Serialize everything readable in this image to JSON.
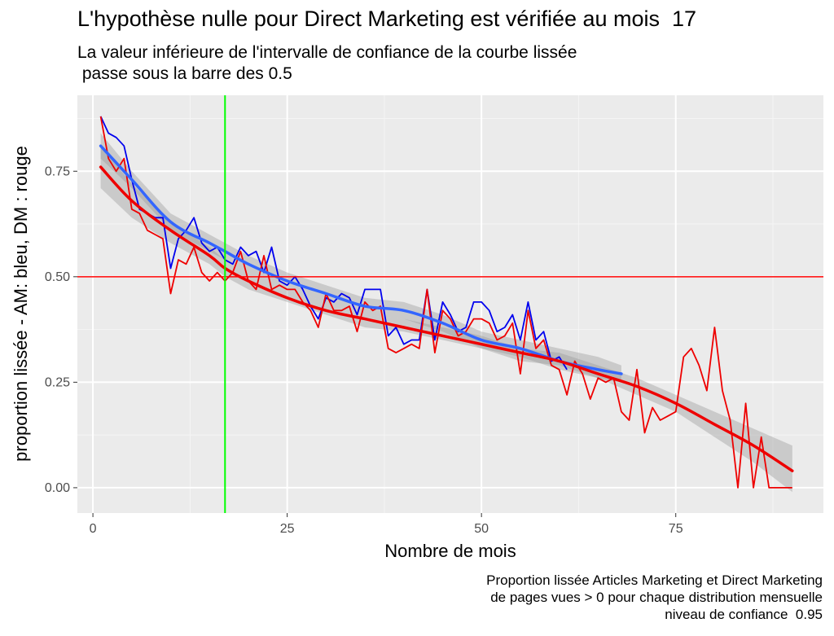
{
  "chart_data": {
    "type": "line",
    "title": "L'hypothèse nulle pour Direct Marketing est vérifiée au mois  17",
    "subtitle": [
      "La valeur inférieure de l'intervalle de confiance de la courbe lissée",
      " passe sous la barre des 0.5"
    ],
    "caption": [
      "Proportion lissée Articles Marketing et Direct Marketing",
      "de pages vues > 0 pour chaque distribution mensuelle",
      "niveau de confiance  0.95"
    ],
    "xlabel": "Nombre de mois",
    "ylabel": "proportion lissée - AM: bleu, DM : rouge",
    "xlim": [
      -2,
      94
    ],
    "ylim": [
      -0.06,
      0.93
    ],
    "x_ticks": [
      0,
      25,
      50,
      75
    ],
    "x_tick_labels": [
      "0",
      "25",
      "50",
      "75"
    ],
    "y_ticks": [
      0,
      0.25,
      0.5,
      0.75
    ],
    "y_tick_labels": [
      "0.00",
      "0.25",
      "0.50",
      "0.75"
    ],
    "grid": true,
    "hline": {
      "y": 0.5,
      "color": "#ff0000"
    },
    "vline": {
      "x": 17,
      "color": "#00ff00"
    },
    "series": [
      {
        "color": "#0000ee",
        "x": [
          1,
          2,
          3,
          4,
          5,
          6,
          7,
          8,
          9,
          10,
          11,
          12,
          13,
          14,
          15,
          16,
          17,
          18,
          19,
          20,
          21,
          22,
          23,
          24,
          25,
          26,
          27,
          28,
          29,
          30,
          31,
          32,
          33,
          34,
          35,
          36,
          37,
          38,
          39,
          40,
          41,
          42,
          43,
          44,
          45,
          46,
          47,
          48,
          49,
          50,
          51,
          52,
          53,
          54,
          55,
          56,
          57,
          58,
          59,
          60,
          61
        ],
        "values": [
          0.88,
          0.84,
          0.83,
          0.81,
          0.73,
          0.66,
          0.65,
          0.64,
          0.64,
          0.52,
          0.59,
          0.61,
          0.64,
          0.58,
          0.56,
          0.57,
          0.54,
          0.53,
          0.57,
          0.55,
          0.56,
          0.51,
          0.57,
          0.49,
          0.48,
          0.5,
          0.47,
          0.43,
          0.4,
          0.45,
          0.44,
          0.46,
          0.45,
          0.41,
          0.47,
          0.47,
          0.47,
          0.36,
          0.38,
          0.34,
          0.35,
          0.35,
          0.47,
          0.35,
          0.44,
          0.41,
          0.37,
          0.38,
          0.44,
          0.44,
          0.42,
          0.37,
          0.38,
          0.41,
          0.35,
          0.44,
          0.35,
          0.37,
          0.3,
          0.31,
          0.28
        ]
      },
      {
        "color": "#ee0000",
        "x": [
          1,
          2,
          3,
          4,
          5,
          6,
          7,
          8,
          9,
          10,
          11,
          12,
          13,
          14,
          15,
          16,
          17,
          18,
          19,
          20,
          21,
          22,
          23,
          24,
          25,
          26,
          27,
          28,
          29,
          30,
          31,
          32,
          33,
          34,
          35,
          36,
          37,
          38,
          39,
          40,
          41,
          42,
          43,
          44,
          45,
          46,
          47,
          48,
          49,
          50,
          51,
          52,
          53,
          54,
          55,
          56,
          57,
          58,
          59,
          60,
          61,
          62,
          63,
          64,
          65,
          66,
          67,
          68,
          69,
          70,
          71,
          72,
          73,
          74,
          75,
          76,
          77,
          78,
          79,
          80,
          81,
          82,
          83,
          84,
          85,
          86,
          87,
          88,
          89,
          90
        ],
        "values": [
          0.88,
          0.78,
          0.75,
          0.78,
          0.66,
          0.65,
          0.61,
          0.6,
          0.59,
          0.46,
          0.54,
          0.53,
          0.57,
          0.51,
          0.49,
          0.51,
          0.49,
          0.51,
          0.56,
          0.49,
          0.47,
          0.55,
          0.47,
          0.48,
          0.47,
          0.47,
          0.44,
          0.42,
          0.38,
          0.46,
          0.42,
          0.42,
          0.43,
          0.37,
          0.44,
          0.42,
          0.43,
          0.33,
          0.32,
          0.33,
          0.34,
          0.33,
          0.47,
          0.32,
          0.42,
          0.4,
          0.36,
          0.37,
          0.4,
          0.4,
          0.39,
          0.35,
          0.36,
          0.39,
          0.27,
          0.42,
          0.33,
          0.35,
          0.29,
          0.28,
          0.22,
          0.3,
          0.27,
          0.21,
          0.26,
          0.25,
          0.26,
          0.18,
          0.16,
          0.28,
          0.13,
          0.19,
          0.16,
          0.17,
          0.18,
          0.31,
          0.33,
          0.29,
          0.23,
          0.38,
          0.23,
          0.16,
          0.0,
          0.2,
          0.0,
          0.12,
          0.0,
          0.0,
          0.0,
          0.0
        ]
      },
      {
        "color": "#3366ff",
        "smooth": true,
        "x": [
          1,
          5,
          10,
          15,
          17,
          20,
          25,
          30,
          35,
          40,
          45,
          50,
          55,
          60,
          65,
          68
        ],
        "values": [
          0.81,
          0.73,
          0.63,
          0.58,
          0.56,
          0.53,
          0.49,
          0.46,
          0.43,
          0.42,
          0.39,
          0.35,
          0.33,
          0.3,
          0.28,
          0.27
        ],
        "ci_upper": [
          0.84,
          0.75,
          0.65,
          0.6,
          0.58,
          0.55,
          0.51,
          0.48,
          0.45,
          0.44,
          0.41,
          0.37,
          0.35,
          0.33,
          0.31,
          0.29
        ],
        "ci_lower": [
          0.78,
          0.71,
          0.61,
          0.56,
          0.54,
          0.51,
          0.47,
          0.44,
          0.41,
          0.4,
          0.37,
          0.33,
          0.31,
          0.28,
          0.26,
          0.25
        ]
      },
      {
        "color": "#ee0000",
        "smooth": true,
        "x": [
          1,
          5,
          10,
          15,
          17,
          20,
          25,
          30,
          35,
          40,
          45,
          50,
          55,
          60,
          65,
          70,
          75,
          80,
          85,
          90
        ],
        "values": [
          0.76,
          0.68,
          0.61,
          0.55,
          0.52,
          0.49,
          0.45,
          0.42,
          0.4,
          0.38,
          0.36,
          0.34,
          0.32,
          0.3,
          0.27,
          0.24,
          0.2,
          0.15,
          0.1,
          0.04
        ],
        "ci_upper": [
          0.81,
          0.72,
          0.63,
          0.57,
          0.54,
          0.51,
          0.47,
          0.44,
          0.41,
          0.4,
          0.38,
          0.36,
          0.33,
          0.32,
          0.29,
          0.26,
          0.22,
          0.18,
          0.14,
          0.1
        ],
        "ci_lower": [
          0.71,
          0.64,
          0.58,
          0.53,
          0.5,
          0.47,
          0.44,
          0.41,
          0.38,
          0.37,
          0.35,
          0.33,
          0.3,
          0.29,
          0.26,
          0.22,
          0.18,
          0.12,
          0.06,
          -0.01
        ]
      }
    ]
  }
}
